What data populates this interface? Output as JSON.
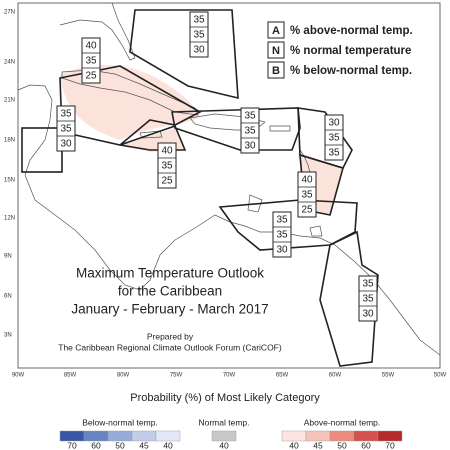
{
  "axes": {
    "lat_labels": [
      "27N",
      "24N",
      "21N",
      "18N",
      "15N",
      "12N",
      "9N",
      "6N",
      "3N"
    ],
    "lon_labels": [
      "90W",
      "85W",
      "80W",
      "75W",
      "70W",
      "65W",
      "60W",
      "55W",
      "50W"
    ]
  },
  "legend": {
    "rows": [
      {
        "key": "A",
        "text": "% above-normal temp."
      },
      {
        "key": "N",
        "text": "% normal temperature"
      },
      {
        "key": "B",
        "text": "% below-normal temp."
      }
    ]
  },
  "title": {
    "lines": [
      "Maximum Temperature Outlook",
      "for the Caribbean",
      "January - February - March 2017"
    ]
  },
  "credit": {
    "lines": [
      "Prepared by",
      "The Caribbean Regional Climate Outlook Forum (CariCOF)"
    ]
  },
  "zones": [
    {
      "values": [
        35,
        35,
        30
      ]
    },
    {
      "values": [
        40,
        35,
        25
      ]
    },
    {
      "values": [
        35,
        35,
        30
      ]
    },
    {
      "values": [
        35,
        35,
        30
      ]
    },
    {
      "values": [
        30,
        35,
        35
      ]
    },
    {
      "values": [
        40,
        35,
        25
      ]
    },
    {
      "values": [
        40,
        35,
        25
      ]
    },
    {
      "values": [
        35,
        35,
        30
      ]
    },
    {
      "values": [
        35,
        35,
        30
      ]
    }
  ],
  "colorbar": {
    "title": "Probability (%) of Most Likely Category",
    "groups": [
      {
        "label": "Below-normal temp.",
        "ticks": [
          70,
          60,
          50,
          45,
          40
        ]
      },
      {
        "label": "Normal temp.",
        "ticks": [
          40
        ]
      },
      {
        "label": "Above-normal temp.",
        "ticks": [
          40,
          45,
          50,
          60,
          70
        ]
      }
    ]
  }
}
